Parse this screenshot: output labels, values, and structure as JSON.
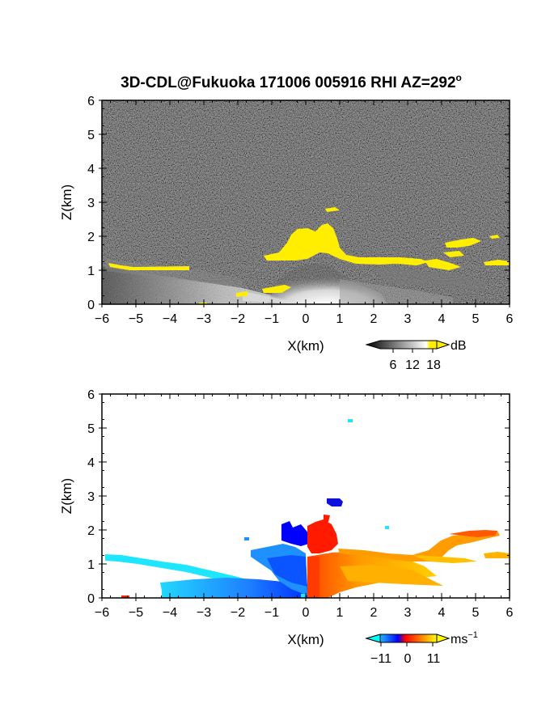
{
  "title": "3D-CDL@Fukuoka 171006 005916 RHI AZ=292",
  "title_superscript": "o",
  "chart_data": [
    {
      "type": "heatmap",
      "name": "reflectivity",
      "xlabel": "X(km)",
      "ylabel": "Z(km)",
      "xlim": [
        -6,
        6
      ],
      "ylim": [
        0,
        6
      ],
      "x_ticks": [
        "−6",
        "−5",
        "−4",
        "−3",
        "−2",
        "−1",
        "0",
        "1",
        "2",
        "3",
        "4",
        "5",
        "6"
      ],
      "y_ticks": [
        "0",
        "1",
        "2",
        "3",
        "4",
        "5",
        "6"
      ],
      "background": "noisy gray speckle (low SNR)",
      "highlight_color": "#ffee00",
      "highlight_regions": [
        {
          "region": "left low layer",
          "x": [
            -6,
            -3.4
          ],
          "z": [
            1.0,
            1.25
          ]
        },
        {
          "region": "central cloud",
          "x": [
            -0.5,
            1.2
          ],
          "z": [
            1.2,
            2.4
          ]
        },
        {
          "region": "small top cell",
          "x": [
            0.6,
            1.0
          ],
          "z": [
            2.7,
            2.8
          ]
        },
        {
          "region": "right layer",
          "x": [
            1.0,
            4.0
          ],
          "z": [
            1.2,
            1.35
          ]
        },
        {
          "region": "far right patches",
          "x": [
            3.5,
            6.0
          ],
          "z": [
            1.1,
            1.8
          ]
        }
      ],
      "colorbar": {
        "unit": "dB",
        "ticks": [
          "6",
          "12",
          "18"
        ],
        "colors": [
          "#000000",
          "#ffffff",
          "#ffee00"
        ]
      }
    },
    {
      "type": "heatmap",
      "name": "radial-velocity",
      "xlabel": "X(km)",
      "ylabel": "Z(km)",
      "xlim": [
        -6,
        6
      ],
      "ylim": [
        0,
        6
      ],
      "x_ticks": [
        "−6",
        "−5",
        "−4",
        "−3",
        "−2",
        "−1",
        "0",
        "1",
        "2",
        "3",
        "4",
        "5",
        "6"
      ],
      "y_ticks": [
        "0",
        "1",
        "2",
        "3",
        "4",
        "5",
        "6"
      ],
      "regions": [
        {
          "region": "left elevated layer",
          "x": [
            -6,
            -3
          ],
          "z": [
            1.0,
            1.2
          ],
          "velocity_ms": -11
        },
        {
          "region": "left near-ground",
          "x": [
            -4.4,
            -0.3
          ],
          "z": [
            0,
            0.5
          ],
          "velocity_ms": -8
        },
        {
          "region": "left lower cloud",
          "x": [
            -1.5,
            0
          ],
          "z": [
            0.3,
            1.3
          ],
          "velocity_ms": -4
        },
        {
          "region": "left upper cloud",
          "x": [
            -0.6,
            0.4
          ],
          "z": [
            1.4,
            2.2
          ],
          "velocity_ms": -1
        },
        {
          "region": "right upper cloud",
          "x": [
            0.3,
            1.1
          ],
          "z": [
            1.4,
            2.4
          ],
          "velocity_ms": 1
        },
        {
          "region": "top cell",
          "x": [
            0.6,
            1.1
          ],
          "z": [
            2.7,
            2.9
          ],
          "velocity_ms": -1
        },
        {
          "region": "right lower cloud",
          "x": [
            0,
            3.0
          ],
          "z": [
            0,
            1.3
          ],
          "velocity_ms": 6
        },
        {
          "region": "right elevated layer",
          "x": [
            1.5,
            5.8
          ],
          "z": [
            1.2,
            2.0
          ],
          "velocity_ms": 8
        }
      ],
      "colorbar": {
        "unit": "ms",
        "unit_exponent": "−1",
        "ticks": [
          "−11",
          "0",
          "11"
        ],
        "range": [
          -11,
          11
        ]
      }
    }
  ]
}
